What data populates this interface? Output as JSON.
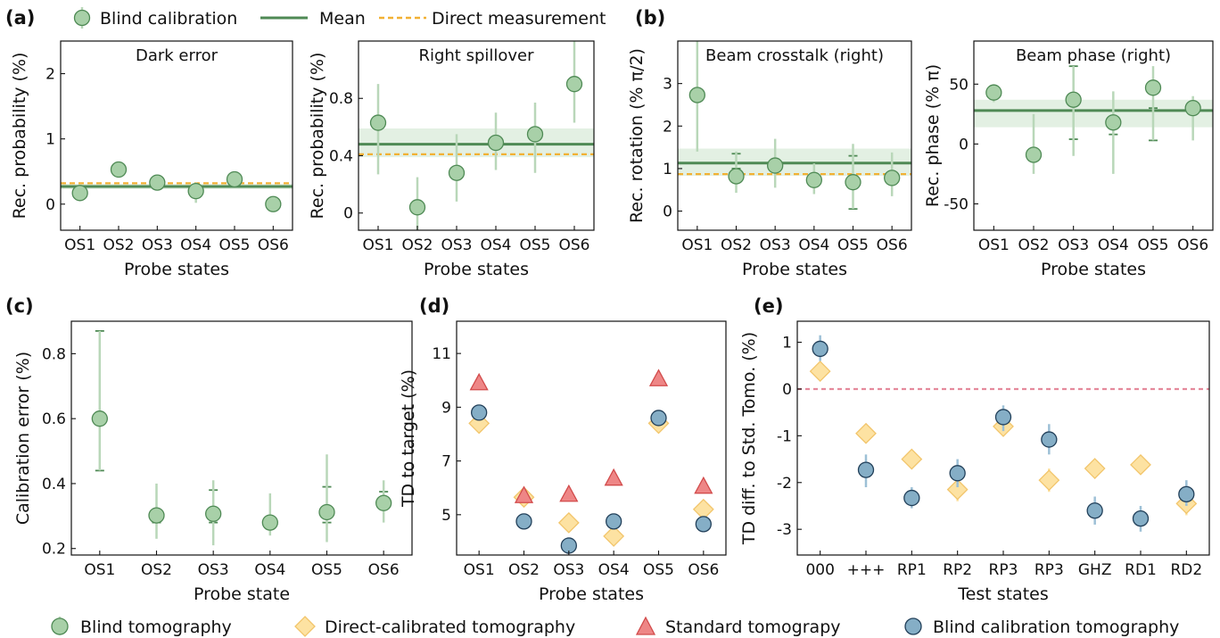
{
  "colors": {
    "green_fill": "#a8d0a8",
    "green_edge": "#4f8a55",
    "green_line": "#4f8a55",
    "green_band": "#e3f0e3",
    "green_err": "#b9d7b9",
    "orange": "#f2b134",
    "diamond_fill": "#fde2a2",
    "diamond_edge": "#f2c56b",
    "tri_fill": "#ee8686",
    "tri_edge": "#d24b4b",
    "blue_fill": "#85aec6",
    "blue_edge": "#22405a",
    "blue_err": "#9dc0d6",
    "pink_dash": "#e58a9c"
  },
  "panel_labels": {
    "a": "(a)",
    "b": "(b)",
    "c": "(c)",
    "d": "(d)",
    "e": "(e)"
  },
  "legend_top": {
    "blind_calibration": "Blind calibration",
    "mean": "Mean",
    "direct": "Direct  measurement"
  },
  "legend_bottom": {
    "blind_tomography": "Blind tomography",
    "direct_tomography": "Direct-calibrated tomography",
    "standard_tomography": "Standard tomograpy",
    "blind_cal_tomography": "Blind calibration tomography"
  },
  "chart_data": [
    {
      "id": "a1",
      "type": "scatter",
      "title": "Dark error",
      "xlabel": "Probe states",
      "ylabel": "Rec. probability (%)",
      "categories": [
        "OS1",
        "OS2",
        "OS3",
        "OS4",
        "OS5",
        "OS6"
      ],
      "ylim": [
        -0.4,
        2.5
      ],
      "yticks": [
        0,
        1,
        2
      ],
      "values": [
        0.17,
        0.53,
        0.33,
        0.2,
        0.38,
        0.0
      ],
      "err_low": [
        0.1,
        0.43,
        0.25,
        0.02,
        0.28,
        -0.08
      ],
      "err_high": [
        0.24,
        0.63,
        0.41,
        0.33,
        0.48,
        0.08
      ],
      "mean": 0.27,
      "mean_band": [
        0.23,
        0.31
      ],
      "direct": 0.32
    },
    {
      "id": "a2",
      "type": "scatter",
      "title": "Right spillover",
      "xlabel": "Probe states",
      "ylabel": "Rec. probability (%)",
      "categories": [
        "OS1",
        "OS2",
        "OS3",
        "OS4",
        "OS5",
        "OS6"
      ],
      "ylim": [
        -0.12,
        1.2
      ],
      "yticks": [
        0,
        0.4,
        0.8
      ],
      "values": [
        0.63,
        0.04,
        0.28,
        0.49,
        0.55,
        0.9
      ],
      "err_low": [
        0.27,
        -0.12,
        0.08,
        0.3,
        0.28,
        0.63
      ],
      "err_high": [
        0.9,
        0.25,
        0.55,
        0.7,
        0.77,
        1.2
      ],
      "mean": 0.48,
      "mean_band": [
        0.39,
        0.59
      ],
      "direct": 0.41
    },
    {
      "id": "b1",
      "type": "scatter",
      "title": "Beam crosstalk (right)",
      "xlabel": "Probe states",
      "ylabel": "Rec. rotation (% π/2)",
      "categories": [
        "OS1",
        "OS2",
        "OS3",
        "OS4",
        "OS5",
        "OS6"
      ],
      "ylim": [
        -0.45,
        4.0
      ],
      "yticks": [
        0,
        1,
        2,
        3
      ],
      "values": [
        2.73,
        0.82,
        1.07,
        0.73,
        0.68,
        0.78
      ],
      "err_low": [
        1.4,
        0.43,
        0.55,
        0.4,
        0.05,
        0.35
      ],
      "err_high": [
        4.0,
        1.4,
        1.7,
        1.12,
        1.58,
        1.38
      ],
      "mean": 1.13,
      "mean_band": [
        0.83,
        1.47
      ],
      "direct": 0.87,
      "mean_err": {
        "1": [
          1.0,
          1.35
        ],
        "4": [
          0.05,
          1.3
        ]
      }
    },
    {
      "id": "b2",
      "type": "scatter",
      "title": "Beam phase (right)",
      "xlabel": "Probe states",
      "ylabel": "Rec.  phase (% π)",
      "categories": [
        "OS1",
        "OS2",
        "OS3",
        "OS4",
        "OS5",
        "OS6"
      ],
      "ylim": [
        -72,
        86
      ],
      "yticks": [
        -50,
        0,
        50
      ],
      "values": [
        43,
        -9,
        37,
        18,
        47,
        30
      ],
      "err_low": [
        35,
        -25,
        -10,
        -25,
        3,
        3
      ],
      "err_high": [
        50,
        25,
        65,
        44,
        65,
        40
      ],
      "mean": 28,
      "mean_band": [
        14,
        37
      ],
      "mean_err": {
        "2": [
          4,
          65
        ],
        "3": [
          8,
          14
        ],
        "4": [
          3,
          30
        ]
      }
    },
    {
      "id": "c",
      "type": "scatter",
      "xlabel": "Probe state",
      "ylabel": "Calibration error (%)",
      "categories": [
        "OS1",
        "OS2",
        "OS3",
        "OS4",
        "OS5",
        "OS6"
      ],
      "ylim": [
        0.18,
        0.9
      ],
      "yticks": [
        0.2,
        0.4,
        0.6,
        0.8
      ],
      "values": [
        0.6,
        0.302,
        0.307,
        0.28,
        0.312,
        0.34
      ],
      "err_low": [
        0.44,
        0.23,
        0.21,
        0.24,
        0.22,
        0.28
      ],
      "err_high": [
        0.87,
        0.4,
        0.41,
        0.37,
        0.49,
        0.41
      ],
      "mean_err": {
        "0": [
          0.44,
          0.87
        ],
        "1": [
          0.28,
          0.302
        ],
        "2": [
          0.28,
          0.38
        ],
        "4": [
          0.28,
          0.39
        ],
        "5": [
          0.33,
          0.375
        ]
      }
    },
    {
      "id": "d",
      "type": "scatter",
      "xlabel": "Probe states",
      "ylabel": "TD to target (%)",
      "categories": [
        "OS1",
        "OS2",
        "OS3",
        "OS4",
        "OS5",
        "OS6"
      ],
      "ylim": [
        3.5,
        12.2
      ],
      "yticks": [
        5,
        7,
        9,
        11
      ],
      "series": [
        {
          "name": "Direct-calibrated tomography",
          "values": [
            8.4,
            5.65,
            4.7,
            4.2,
            8.4,
            5.2
          ]
        },
        {
          "name": "Standard tomograpy",
          "values": [
            9.9,
            5.7,
            5.75,
            6.35,
            10.05,
            6.05
          ]
        },
        {
          "name": "Blind calibration tomography",
          "values": [
            8.8,
            4.75,
            3.85,
            4.75,
            8.6,
            4.65
          ]
        }
      ]
    },
    {
      "id": "e",
      "type": "scatter",
      "xlabel": "Test states",
      "ylabel": "TD diff. to Std. Tomo. (%)",
      "categories": [
        "000",
        "+++",
        "RP1",
        "RP2",
        "RP3",
        "RP3",
        "GHZ",
        "RD1",
        "RD2"
      ],
      "ylim": [
        -3.55,
        1.45
      ],
      "yticks": [
        -3,
        -2,
        -1,
        0,
        1
      ],
      "series": [
        {
          "name": "Direct-calibrated tomography",
          "values": [
            0.38,
            -0.95,
            -1.5,
            -2.15,
            -0.8,
            -1.95,
            -1.7,
            -1.62,
            -2.45
          ],
          "err_low": [
            0.25,
            -1.15,
            -1.7,
            -2.4,
            -1.0,
            -2.2,
            -1.9,
            -1.8,
            -2.7
          ],
          "err_high": [
            0.55,
            -0.75,
            -1.3,
            -1.9,
            -0.6,
            -1.7,
            -1.5,
            -1.45,
            -2.2
          ]
        },
        {
          "name": "Blind calibration tomography",
          "values": [
            0.86,
            -1.73,
            -2.33,
            -1.8,
            -0.6,
            -1.08,
            -2.6,
            -2.77,
            -2.25
          ],
          "err_low": [
            0.6,
            -2.1,
            -2.55,
            -2.1,
            -0.9,
            -1.4,
            -2.9,
            -3.05,
            -2.5
          ],
          "err_high": [
            1.15,
            -1.4,
            -2.1,
            -1.5,
            -0.35,
            -0.75,
            -2.3,
            -2.5,
            -1.95
          ]
        }
      ],
      "reference": 0
    }
  ]
}
